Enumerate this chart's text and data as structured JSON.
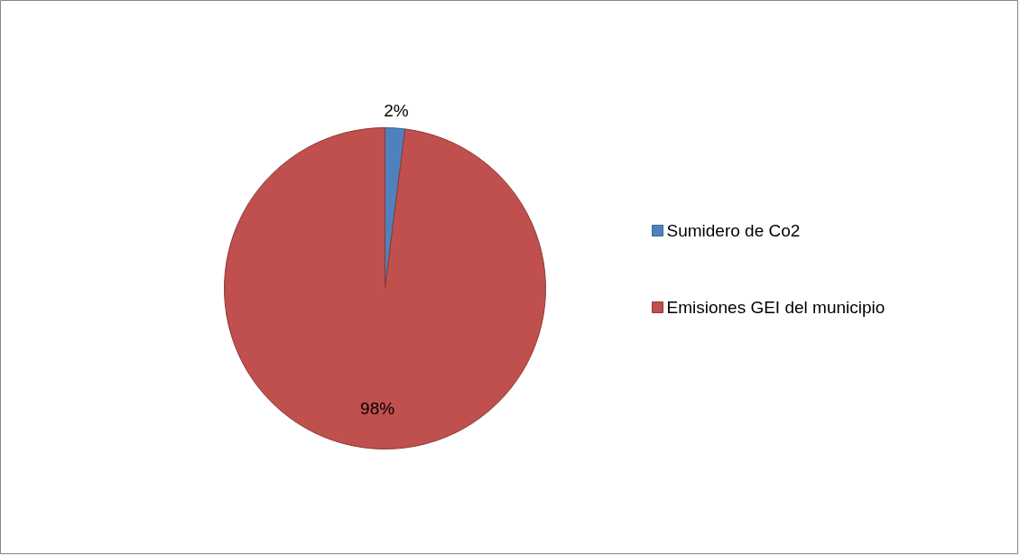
{
  "chart_data": {
    "type": "pie",
    "categories": [
      "Sumidero de Co2",
      "Emisiones GEI del municipio"
    ],
    "values": [
      2,
      98
    ],
    "colors": [
      "#4f81bd",
      "#c0504d"
    ],
    "value_labels": [
      "2%",
      "98%"
    ],
    "legend": "right"
  }
}
